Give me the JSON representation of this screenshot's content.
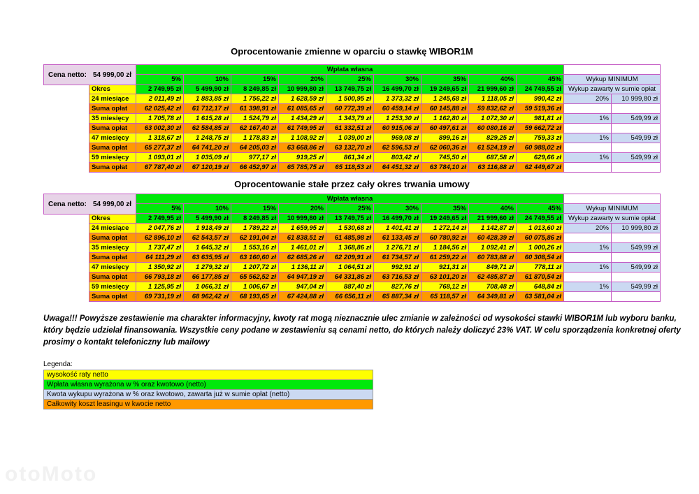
{
  "document": {
    "sections": [
      {
        "title": "Oprocentowanie zmienne w oparciu o stawkę WIBOR1M",
        "cena_netto": {
          "label": "Cena netto:",
          "value": "54 999,00 zł"
        },
        "wplata_wlasna_header": "Wpłata własna",
        "percent_columns": [
          "5%",
          "10%",
          "15%",
          "20%",
          "25%",
          "30%",
          "35%",
          "40%",
          "45%"
        ],
        "okres_row": {
          "label": "Okres",
          "values": [
            "2 749,95 zł",
            "5 499,90 zł",
            "8 249,85 zł",
            "10 999,80 zł",
            "13 749,75 zł",
            "16 499,70 zł",
            "19 249,65 zł",
            "21 999,60 zł",
            "24 749,55 zł"
          ]
        },
        "wykup": {
          "header": "Wykup MINIMUM",
          "subheader": "Wykup zawarty w sumie opłat"
        },
        "rows": [
          {
            "label": "24 miesiące",
            "type": "rate",
            "values": [
              "2 011,49 zł",
              "1 883,85 zł",
              "1 756,22 zł",
              "1 628,59 zł",
              "1 500,95 zł",
              "1 373,32 zł",
              "1 245,68 zł",
              "1 118,05 zł",
              "990,42 zł"
            ],
            "wykup_percent": "20%",
            "wykup_amount": "10 999,80 zł"
          },
          {
            "label": "Suma opłat",
            "type": "sum",
            "values": [
              "62 025,42 zł",
              "61 712,17 zł",
              "61 398,91 zł",
              "61 085,65 zł",
              "60 772,39 zł",
              "60 459,14 zł",
              "60 145,88 zł",
              "59 832,62 zł",
              "59 519,36 zł"
            ]
          },
          {
            "label": "35 miesięcy",
            "type": "rate",
            "values": [
              "1 705,78 zł",
              "1 615,28 zł",
              "1 524,79 zł",
              "1 434,29 zł",
              "1 343,79 zł",
              "1 253,30 zł",
              "1 162,80 zł",
              "1 072,30 zł",
              "981,81 zł"
            ],
            "wykup_percent": "1%",
            "wykup_amount": "549,99 zł"
          },
          {
            "label": "Suma opłat",
            "type": "sum",
            "values": [
              "63 002,30 zł",
              "62 584,85 zł",
              "62 167,40 zł",
              "61 749,95 zł",
              "61 332,51 zł",
              "60 915,06 zł",
              "60 497,61 zł",
              "60 080,16 zł",
              "59 662,72 zł"
            ]
          },
          {
            "label": "47 miesięcy",
            "type": "rate",
            "values": [
              "1 318,67 zł",
              "1 248,75 zł",
              "1 178,83 zł",
              "1 108,92 zł",
              "1 039,00 zł",
              "969,08 zł",
              "899,16 zł",
              "829,25 zł",
              "759,33 zł"
            ],
            "wykup_percent": "1%",
            "wykup_amount": "549,99 zł"
          },
          {
            "label": "Suma opłat",
            "type": "sum",
            "values": [
              "65 277,37 zł",
              "64 741,20 zł",
              "64 205,03 zł",
              "63 668,86 zł",
              "63 132,70 zł",
              "62 596,53 zł",
              "62 060,36 zł",
              "61 524,19 zł",
              "60 988,02 zł"
            ]
          },
          {
            "label": "59 miesięcy",
            "type": "rate",
            "values": [
              "1 093,01 zł",
              "1 035,09 zł",
              "977,17 zł",
              "919,25 zł",
              "861,34 zł",
              "803,42 zł",
              "745,50 zł",
              "687,58 zł",
              "629,66 zł"
            ],
            "wykup_percent": "1%",
            "wykup_amount": "549,99 zł"
          },
          {
            "label": "Suma opłat",
            "type": "sum",
            "values": [
              "67 787,40 zł",
              "67 120,19 zł",
              "66 452,97 zł",
              "65 785,75 zł",
              "65 118,53 zł",
              "64 451,32 zł",
              "63 784,10 zł",
              "63 116,88 zł",
              "62 449,67 zł"
            ]
          }
        ]
      },
      {
        "title": "Oprocentowanie stałe przez cały okres trwania umowy",
        "cena_netto": {
          "label": "Cena netto:",
          "value": "54 999,00 zł"
        },
        "wplata_wlasna_header": "Wpłata własna",
        "percent_columns": [
          "5%",
          "10%",
          "15%",
          "20%",
          "25%",
          "30%",
          "35%",
          "40%",
          "45%"
        ],
        "okres_row": {
          "label": "Okres",
          "values": [
            "2 749,95 zł",
            "5 499,90 zł",
            "8 249,85 zł",
            "10 999,80 zł",
            "13 749,75 zł",
            "16 499,70 zł",
            "19 249,65 zł",
            "21 999,60 zł",
            "24 749,55 zł"
          ]
        },
        "wykup": {
          "header": "Wykup MINIMUM",
          "subheader": "Wykup zawarty w sumie opłat"
        },
        "rows": [
          {
            "label": "24 miesiące",
            "type": "rate",
            "values": [
              "2 047,76 zł",
              "1 918,49 zł",
              "1 789,22 zł",
              "1 659,95 zł",
              "1 530,68 zł",
              "1 401,41 zł",
              "1 272,14 zł",
              "1 142,87 zł",
              "1 013,60 zł"
            ],
            "wykup_percent": "20%",
            "wykup_amount": "10 999,80 zł"
          },
          {
            "label": "Suma opłat",
            "type": "sum",
            "values": [
              "62 896,10 zł",
              "62 543,57 zł",
              "62 191,04 zł",
              "61 838,51 zł",
              "61 485,98 zł",
              "61 133,45 zł",
              "60 780,92 zł",
              "60 428,39 zł",
              "60 075,86 zł"
            ]
          },
          {
            "label": "35 miesięcy",
            "type": "rate",
            "values": [
              "1 737,47 zł",
              "1 645,32 zł",
              "1 553,16 zł",
              "1 461,01 zł",
              "1 368,86 zł",
              "1 276,71 zł",
              "1 184,56 zł",
              "1 092,41 zł",
              "1 000,26 zł"
            ],
            "wykup_percent": "1%",
            "wykup_amount": "549,99 zł"
          },
          {
            "label": "Suma opłat",
            "type": "sum",
            "values": [
              "64 111,29 zł",
              "63 635,95 zł",
              "63 160,60 zł",
              "62 685,26 zł",
              "62 209,91 zł",
              "61 734,57 zł",
              "61 259,22 zł",
              "60 783,88 zł",
              "60 308,54 zł"
            ]
          },
          {
            "label": "47 miesięcy",
            "type": "rate",
            "values": [
              "1 350,92 zł",
              "1 279,32 zł",
              "1 207,72 zł",
              "1 136,11 zł",
              "1 064,51 zł",
              "992,91 zł",
              "921,31 zł",
              "849,71 zł",
              "778,11 zł"
            ],
            "wykup_percent": "1%",
            "wykup_amount": "549,99 zł"
          },
          {
            "label": "Suma opłat",
            "type": "sum",
            "values": [
              "66 793,18 zł",
              "66 177,85 zł",
              "65 562,52 zł",
              "64 947,19 zł",
              "64 331,86 zł",
              "63 716,53 zł",
              "63 101,20 zł",
              "62 485,87 zł",
              "61 870,54 zł"
            ]
          },
          {
            "label": "59 miesięcy",
            "type": "rate",
            "values": [
              "1 125,95 zł",
              "1 066,31 zł",
              "1 006,67 zł",
              "947,04 zł",
              "887,40 zł",
              "827,76 zł",
              "768,12 zł",
              "708,48 zł",
              "648,84 zł"
            ],
            "wykup_percent": "1%",
            "wykup_amount": "549,99 zł"
          },
          {
            "label": "Suma opłat",
            "type": "sum",
            "values": [
              "69 731,19 zł",
              "68 962,42 zł",
              "68 193,65 zł",
              "67 424,88 zł",
              "66 656,11 zł",
              "65 887,34 zł",
              "65 118,57 zł",
              "64 349,81 zł",
              "63 581,04 zł"
            ]
          }
        ]
      }
    ]
  },
  "warning": "Uwaga!!! Powyższe zestawienie ma charakter informacyjny, kwoty rat mogą nieznacznie ulec zmianie w zależności od wysokości stawki WIBOR1M lub wyboru banku, który będzie udzielał finansowania. Wszystkie ceny podane w zestawieniu są cenami netto, do których należy doliczyć 23% VAT. W celu sporządzenia konkretnej oferty prosimy o kontakt telefoniczny lub mailowy",
  "legend": {
    "title": "Legenda:",
    "items": [
      {
        "label": "wysokość raty netto",
        "color": "#ffff00"
      },
      {
        "label": "Wpłata własna wyrażona w % oraz kwotowo (netto)",
        "color": "#00e90b"
      },
      {
        "label": "Kwota wykupu wyrażona w % oraz kwotowo, zawarta już w sumie opłat (netto)",
        "color": "#cbd9f2"
      },
      {
        "label": "Całkowity koszt leasingu w kwocie netto",
        "color": "#ff9900"
      }
    ]
  },
  "watermark": "otoMoto",
  "colors": {
    "green": "#00e90b",
    "yellow": "#ffff00",
    "orange": "#ff9900",
    "light_blue": "#cbd9f2",
    "pink": "#e7d3e7",
    "table_border": "#c45ac4"
  }
}
